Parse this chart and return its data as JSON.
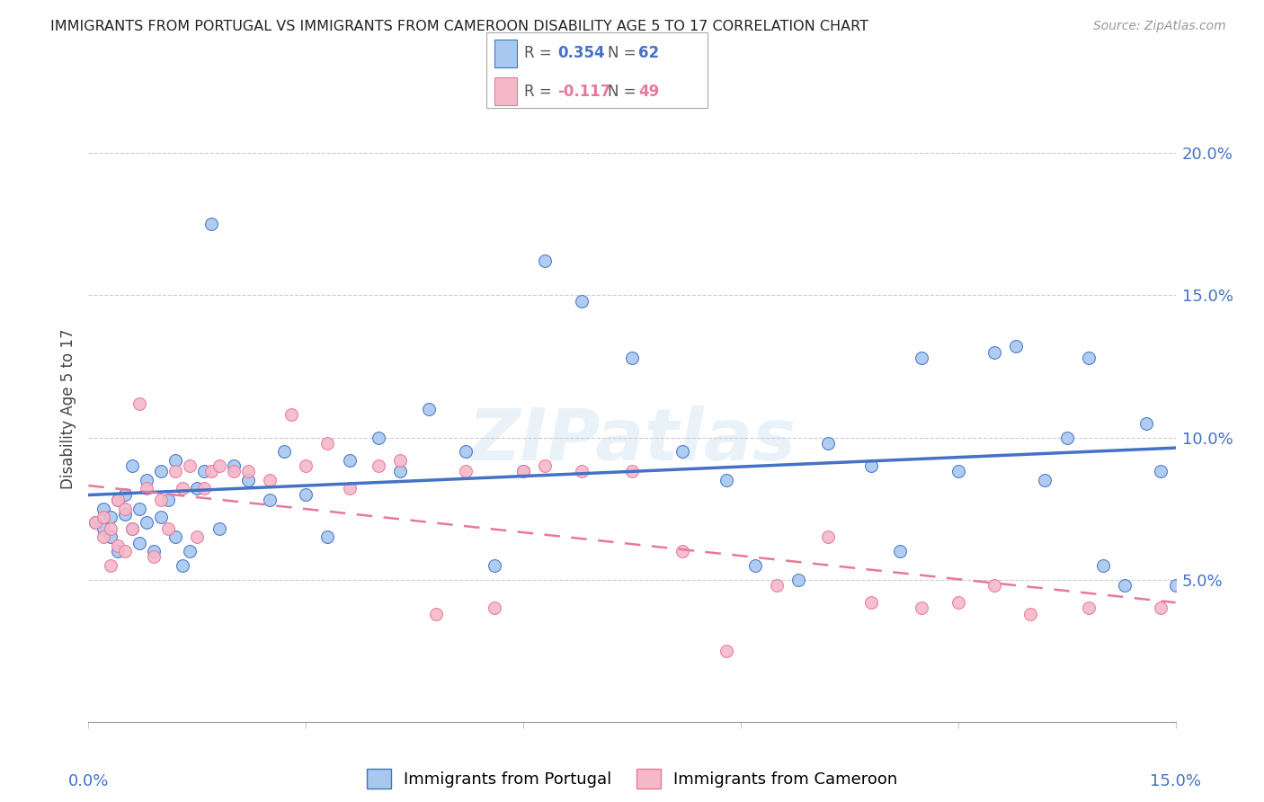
{
  "title": "IMMIGRANTS FROM PORTUGAL VS IMMIGRANTS FROM CAMEROON DISABILITY AGE 5 TO 17 CORRELATION CHART",
  "source": "Source: ZipAtlas.com",
  "ylabel": "Disability Age 5 to 17",
  "y_tick_values": [
    0.05,
    0.1,
    0.15,
    0.2
  ],
  "xlim": [
    0.0,
    0.15
  ],
  "ylim": [
    0.0,
    0.22
  ],
  "color_portugal": "#A8C8F0",
  "color_cameroon": "#F5B8C8",
  "color_blue": "#4472C4",
  "color_pink": "#E8789A",
  "portugal_x": [
    0.001,
    0.002,
    0.002,
    0.003,
    0.003,
    0.004,
    0.004,
    0.005,
    0.005,
    0.006,
    0.006,
    0.007,
    0.007,
    0.008,
    0.008,
    0.009,
    0.01,
    0.01,
    0.011,
    0.012,
    0.012,
    0.013,
    0.014,
    0.015,
    0.016,
    0.017,
    0.018,
    0.02,
    0.022,
    0.025,
    0.027,
    0.03,
    0.033,
    0.036,
    0.04,
    0.043,
    0.047,
    0.052,
    0.056,
    0.06,
    0.063,
    0.068,
    0.075,
    0.082,
    0.088,
    0.092,
    0.098,
    0.102,
    0.108,
    0.112,
    0.115,
    0.12,
    0.125,
    0.128,
    0.132,
    0.135,
    0.138,
    0.14,
    0.143,
    0.146,
    0.148,
    0.15
  ],
  "portugal_y": [
    0.07,
    0.068,
    0.075,
    0.072,
    0.065,
    0.078,
    0.06,
    0.073,
    0.08,
    0.068,
    0.09,
    0.075,
    0.063,
    0.07,
    0.085,
    0.06,
    0.088,
    0.072,
    0.078,
    0.065,
    0.092,
    0.055,
    0.06,
    0.082,
    0.088,
    0.175,
    0.068,
    0.09,
    0.085,
    0.078,
    0.095,
    0.08,
    0.065,
    0.092,
    0.1,
    0.088,
    0.11,
    0.095,
    0.055,
    0.088,
    0.162,
    0.148,
    0.128,
    0.095,
    0.085,
    0.055,
    0.05,
    0.098,
    0.09,
    0.06,
    0.128,
    0.088,
    0.13,
    0.132,
    0.085,
    0.1,
    0.128,
    0.055,
    0.048,
    0.105,
    0.088,
    0.048
  ],
  "cameroon_x": [
    0.001,
    0.002,
    0.002,
    0.003,
    0.003,
    0.004,
    0.004,
    0.005,
    0.005,
    0.006,
    0.007,
    0.008,
    0.009,
    0.01,
    0.011,
    0.012,
    0.013,
    0.014,
    0.015,
    0.016,
    0.017,
    0.018,
    0.02,
    0.022,
    0.025,
    0.028,
    0.03,
    0.033,
    0.036,
    0.04,
    0.043,
    0.048,
    0.052,
    0.056,
    0.06,
    0.063,
    0.068,
    0.075,
    0.082,
    0.088,
    0.095,
    0.102,
    0.108,
    0.115,
    0.12,
    0.125,
    0.13,
    0.138,
    0.148
  ],
  "cameroon_y": [
    0.07,
    0.065,
    0.072,
    0.068,
    0.055,
    0.078,
    0.062,
    0.075,
    0.06,
    0.068,
    0.112,
    0.082,
    0.058,
    0.078,
    0.068,
    0.088,
    0.082,
    0.09,
    0.065,
    0.082,
    0.088,
    0.09,
    0.088,
    0.088,
    0.085,
    0.108,
    0.09,
    0.098,
    0.082,
    0.09,
    0.092,
    0.038,
    0.088,
    0.04,
    0.088,
    0.09,
    0.088,
    0.088,
    0.06,
    0.025,
    0.048,
    0.065,
    0.042,
    0.04,
    0.042,
    0.048,
    0.038,
    0.04,
    0.04
  ]
}
